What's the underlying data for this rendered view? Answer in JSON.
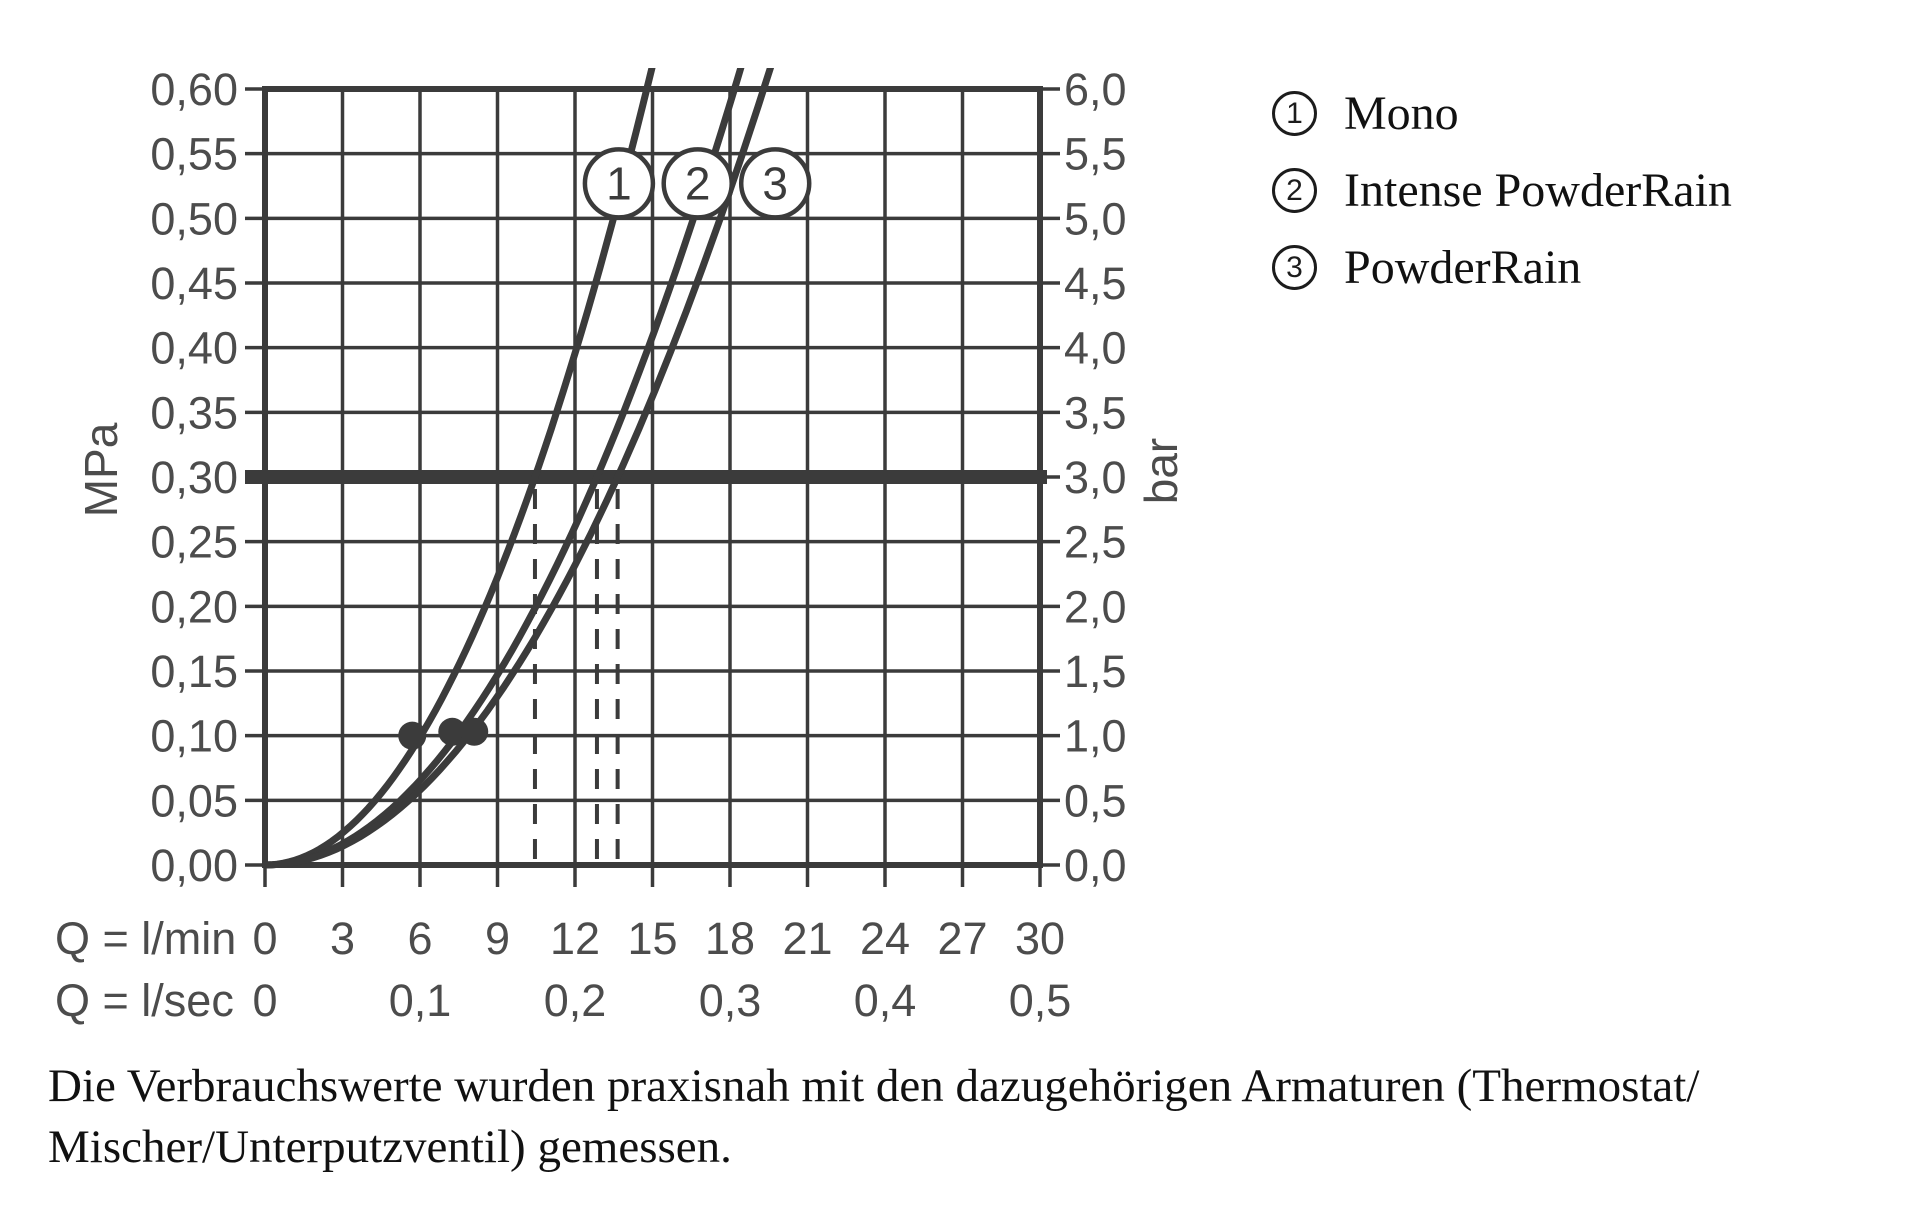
{
  "chart_data": {
    "type": "line",
    "curve_law": "P_MPa = 0.3 * (Q / q_at_3bar_lmin)^2",
    "x_axis": {
      "row1_label": "Q = l/min",
      "row1_ticks": [
        "0",
        "3",
        "6",
        "9",
        "12",
        "15",
        "18",
        "21",
        "24",
        "27",
        "30"
      ],
      "row2_label": "Q = l/sec",
      "row2_ticks": [
        {
          "q": 0,
          "label": "0"
        },
        {
          "q": 6,
          "label": "0,1"
        },
        {
          "q": 12,
          "label": "0,2"
        },
        {
          "q": 18,
          "label": "0,3"
        },
        {
          "q": 24,
          "label": "0,4"
        },
        {
          "q": 30,
          "label": "0,5"
        }
      ],
      "range_lmin": [
        0,
        30
      ]
    },
    "y_axis_left": {
      "label": "MPa",
      "ticks": [
        "0,60",
        "0,55",
        "0,50",
        "0,45",
        "0,40",
        "0,35",
        "0,30",
        "0,25",
        "0,20",
        "0,15",
        "0,10",
        "0,05",
        "0,00"
      ],
      "range": [
        0,
        0.6
      ],
      "step": 0.05
    },
    "y_axis_right": {
      "label": "bar",
      "ticks": [
        "6,0",
        "5,5",
        "5,0",
        "4,5",
        "4,0",
        "3,5",
        "3,0",
        "2,5",
        "2,0",
        "1,5",
        "1,0",
        "0,5",
        "0,0"
      ]
    },
    "reference_line": {
      "p_mpa": 0.3,
      "bar": 3.0
    },
    "dashed_guides_q_lmin": [
      10.45,
      12.85,
      13.65
    ],
    "series": [
      {
        "id": "1",
        "name": "Mono",
        "q_at_3bar_lmin": 10.45,
        "dot": {
          "q": 5.7,
          "p": 0.1
        },
        "marker": {
          "q": 13.7,
          "p": 0.527
        }
      },
      {
        "id": "2",
        "name": "Intense PowderRain",
        "q_at_3bar_lmin": 12.85,
        "dot": {
          "q": 7.25,
          "p": 0.103
        },
        "marker": {
          "q": 16.75,
          "p": 0.527
        }
      },
      {
        "id": "3",
        "name": "PowderRain",
        "q_at_3bar_lmin": 13.65,
        "dot": {
          "q": 8.1,
          "p": 0.103
        },
        "marker": {
          "q": 19.75,
          "p": 0.527
        }
      }
    ],
    "grid": true,
    "legend_position": "right"
  },
  "legend": {
    "items": [
      {
        "num": "1",
        "label": "Mono"
      },
      {
        "num": "2",
        "label": "Intense PowderRain"
      },
      {
        "num": "3",
        "label": "PowderRain"
      }
    ]
  },
  "footer": {
    "line1": "Die Verbrauchswerte wurden praxisnah mit den dazugehörigen Armaturen (Thermostat/",
    "line2": "Mischer/Unterputzventil) gemessen."
  },
  "colors": {
    "ink": "#3b3b3b",
    "label": "#4c4c4c",
    "text": "#111111",
    "background": "#ffffff"
  }
}
